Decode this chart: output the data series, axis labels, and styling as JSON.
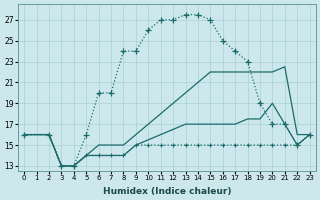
{
  "xlabel": "Humidex (Indice chaleur)",
  "bg_color": "#cde8ec",
  "line_color": "#1a6b6b",
  "grid_color": "#aed4d8",
  "xlim": [
    -0.5,
    23.5
  ],
  "ylim": [
    12.5,
    28.5
  ],
  "xticks": [
    0,
    1,
    2,
    3,
    4,
    5,
    6,
    7,
    8,
    9,
    10,
    11,
    12,
    13,
    14,
    15,
    16,
    17,
    18,
    19,
    20,
    21,
    22,
    23
  ],
  "yticks": [
    13,
    15,
    17,
    19,
    21,
    23,
    25,
    27
  ],
  "line_big_arc": {
    "x": [
      0,
      2,
      3,
      4,
      5,
      6,
      7,
      8,
      9,
      10,
      11,
      12,
      13,
      14,
      15,
      16,
      17,
      18,
      19,
      20,
      21,
      22,
      23
    ],
    "y": [
      16,
      16,
      13,
      13,
      16,
      20,
      20,
      24,
      24,
      26,
      27,
      27,
      27.5,
      27.5,
      27,
      25,
      24,
      23,
      19,
      17,
      17,
      15,
      16
    ]
  },
  "line_medium_arc": {
    "x": [
      0,
      2,
      3,
      4,
      5,
      6,
      7,
      8,
      9,
      10,
      11,
      12,
      13,
      14,
      15,
      16,
      17,
      18,
      19,
      20,
      21,
      22,
      23
    ],
    "y": [
      16,
      16,
      13,
      13,
      14,
      15,
      15,
      15,
      16,
      17,
      18,
      19,
      20,
      21,
      22,
      22,
      22,
      22,
      22,
      22,
      22.5,
      16,
      16
    ]
  },
  "line_low_rise": {
    "x": [
      0,
      2,
      3,
      4,
      5,
      6,
      7,
      8,
      9,
      10,
      11,
      12,
      13,
      14,
      15,
      16,
      17,
      18,
      19,
      20,
      21,
      22,
      23
    ],
    "y": [
      16,
      16,
      13,
      13,
      14,
      14,
      14,
      14,
      15,
      15.5,
      16,
      16.5,
      17,
      17,
      17,
      17,
      17,
      17.5,
      17.5,
      19,
      17,
      15,
      16
    ]
  },
  "line_flat": {
    "x": [
      0,
      2,
      3,
      4,
      5,
      6,
      7,
      8,
      9,
      10,
      11,
      12,
      13,
      14,
      15,
      16,
      17,
      18,
      19,
      20,
      21,
      22,
      23
    ],
    "y": [
      16,
      16,
      13,
      13,
      14,
      14,
      14,
      14,
      15,
      15,
      15,
      15,
      15,
      15,
      15,
      15,
      15,
      15,
      15,
      15,
      15,
      15,
      16
    ]
  }
}
